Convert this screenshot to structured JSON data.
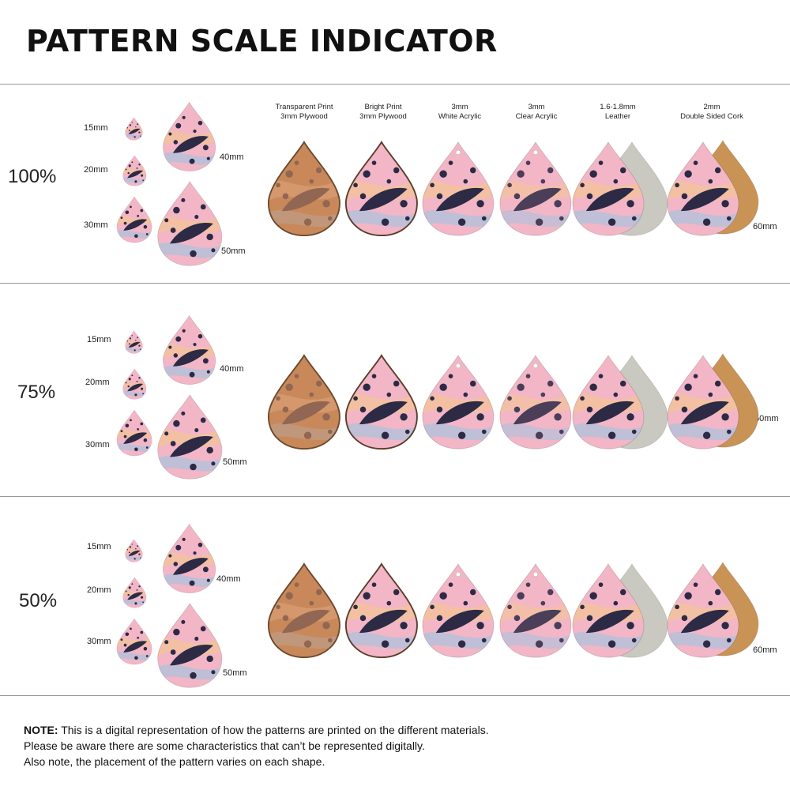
{
  "title": "PATTERN SCALE INDICATOR",
  "materials": [
    {
      "line1": "Transparent Print",
      "line2": "3mm Plywood"
    },
    {
      "line1": "Bright Print",
      "line2": "3mm Plywood"
    },
    {
      "line1": "3mm",
      "line2": "White Acrylic"
    },
    {
      "line1": "3mm",
      "line2": "Clear Acrylic"
    },
    {
      "line1": "1.6-1.8mm",
      "line2": "Leather"
    },
    {
      "line1": "2mm",
      "line2": "Double Sided Cork"
    }
  ],
  "sizes": {
    "s15": "15mm",
    "s20": "20mm",
    "s30": "30mm",
    "s40": "40mm",
    "s50": "50mm",
    "s60": "60mm"
  },
  "rows": [
    {
      "scale": "100%"
    },
    {
      "scale": "75%"
    },
    {
      "scale": "50%"
    }
  ],
  "note": {
    "bold": "NOTE:",
    "line1": " This is a digital representation of how the patterns are printed on the different materials.",
    "line2": "Please be aware there are some characteristics that can’t be represented digitally.",
    "line3": "Also note, the placement of the pattern varies on each shape."
  },
  "colors": {
    "pink": "#f2b6c6",
    "navy": "#2d2a45",
    "wood": "#c8885a",
    "suede": "#c9c9c2",
    "cork": "#c99356",
    "blue": "#a9c3de",
    "peach": "#f3c39b"
  }
}
